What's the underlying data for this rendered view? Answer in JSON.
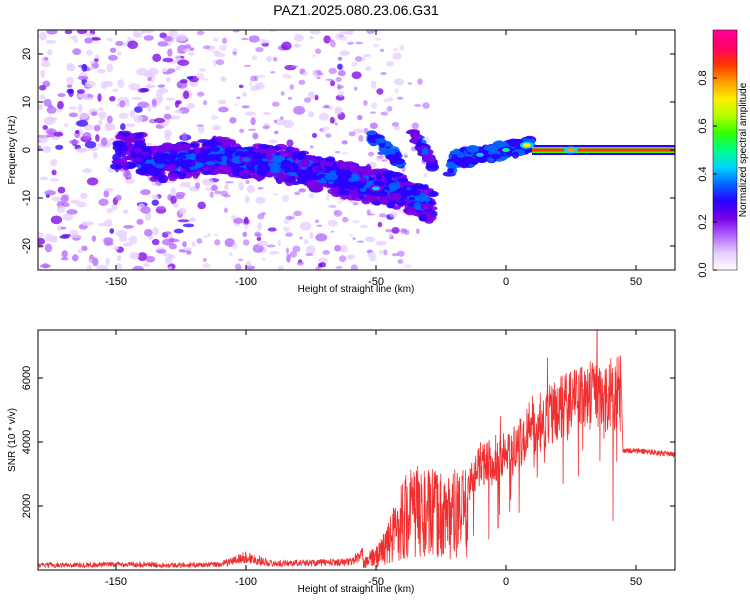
{
  "title": "PAZ1.2025.080.23.06.G31",
  "chart_data": [
    {
      "type": "heatmap",
      "xlabel": "Height of straight line (km)",
      "ylabel": "Frequency (Hz)",
      "xlim": [
        -180,
        65
      ],
      "ylim": [
        -25,
        25
      ],
      "xticks": [
        -150,
        -100,
        -50,
        0,
        50
      ],
      "yticks": [
        -20,
        -10,
        0,
        10,
        20
      ],
      "colorbar": {
        "label": "Normalized spectral amplitude",
        "range": [
          0,
          1
        ],
        "ticks": [
          "0.0",
          "0.2",
          "0.4",
          "0.6",
          "0.8"
        ],
        "tick_values": [
          0,
          0.2,
          0.4,
          0.6,
          0.8
        ],
        "colors": [
          "#ffffff",
          "#e6ccff",
          "#b366ff",
          "#7a00e6",
          "#2a00ff",
          "#0066ff",
          "#00d4ff",
          "#00ff88",
          "#33ff00",
          "#b3ff00",
          "#ffee00",
          "#ff9900",
          "#ff3300",
          "#ff0066",
          "#ff0099"
        ]
      },
      "ridge": [
        {
          "x": -140,
          "y": -3
        },
        {
          "x": -120,
          "y": -2
        },
        {
          "x": -110,
          "y": -1
        },
        {
          "x": -100,
          "y": -2
        },
        {
          "x": -85,
          "y": -3
        },
        {
          "x": -70,
          "y": -5
        },
        {
          "x": -55,
          "y": -7
        },
        {
          "x": -45,
          "y": -8
        },
        {
          "x": -35,
          "y": -10
        },
        {
          "x": -28,
          "y": -12
        },
        {
          "x": -20,
          "y": -2
        },
        {
          "x": -10,
          "y": -1
        },
        {
          "x": 0,
          "y": 0
        },
        {
          "x": 10,
          "y": 1
        },
        {
          "x": 20,
          "y": 0
        },
        {
          "x": 65,
          "y": 0
        }
      ],
      "branch": [
        {
          "x": -52,
          "y": 3
        },
        {
          "x": -45,
          "y": 0
        },
        {
          "x": -40,
          "y": -3
        }
      ],
      "branch2": [
        {
          "x": -36,
          "y": 4
        },
        {
          "x": -32,
          "y": 0
        },
        {
          "x": -28,
          "y": -3
        }
      ],
      "hotspots": [
        {
          "x": -100,
          "y": -2,
          "amp": 0.35
        },
        {
          "x": -72,
          "y": -4,
          "amp": 0.3
        },
        {
          "x": -50,
          "y": -8,
          "amp": 0.4
        },
        {
          "x": -10,
          "y": -1,
          "amp": 0.45
        },
        {
          "x": 0,
          "y": 0,
          "amp": 0.5
        },
        {
          "x": 8,
          "y": 1,
          "amp": 0.7
        },
        {
          "x": 25,
          "y": 0,
          "amp": 0.75
        }
      ]
    },
    {
      "type": "line",
      "xlabel": "Height of straight line (km)",
      "ylabel": "SNR (10 * v/v)",
      "xlim": [
        -180,
        65
      ],
      "ylim": [
        0,
        7500
      ],
      "xticks": [
        -150,
        -100,
        -50,
        0,
        50
      ],
      "yticks": [
        2000,
        4000,
        6000
      ],
      "color": "#f03030",
      "series": [
        {
          "envelope": [
            {
              "x": -180,
              "y": 150
            },
            {
              "x": -140,
              "y": 180
            },
            {
              "x": -130,
              "y": 150
            },
            {
              "x": -110,
              "y": 170
            },
            {
              "x": -100,
              "y": 400
            },
            {
              "x": -90,
              "y": 200
            },
            {
              "x": -60,
              "y": 250
            },
            {
              "x": -50,
              "y": 700
            },
            {
              "x": -45,
              "y": 1500
            },
            {
              "x": -40,
              "y": 2800
            },
            {
              "x": -35,
              "y": 3200
            },
            {
              "x": -30,
              "y": 3000
            },
            {
              "x": -25,
              "y": 3000
            },
            {
              "x": -20,
              "y": 3000
            },
            {
              "x": -15,
              "y": 3000
            },
            {
              "x": -10,
              "y": 4000
            },
            {
              "x": -5,
              "y": 4200
            },
            {
              "x": 0,
              "y": 4300
            },
            {
              "x": 5,
              "y": 4800
            },
            {
              "x": 10,
              "y": 5500
            },
            {
              "x": 15,
              "y": 5700
            },
            {
              "x": 20,
              "y": 6000
            },
            {
              "x": 25,
              "y": 6300
            },
            {
              "x": 30,
              "y": 6500
            },
            {
              "x": 35,
              "y": 6600
            },
            {
              "x": 40,
              "y": 6650
            },
            {
              "x": 44,
              "y": 6700
            },
            {
              "x": 45,
              "y": 3750
            },
            {
              "x": 55,
              "y": 3700
            },
            {
              "x": 65,
              "y": 3600
            }
          ]
        }
      ]
    }
  ]
}
